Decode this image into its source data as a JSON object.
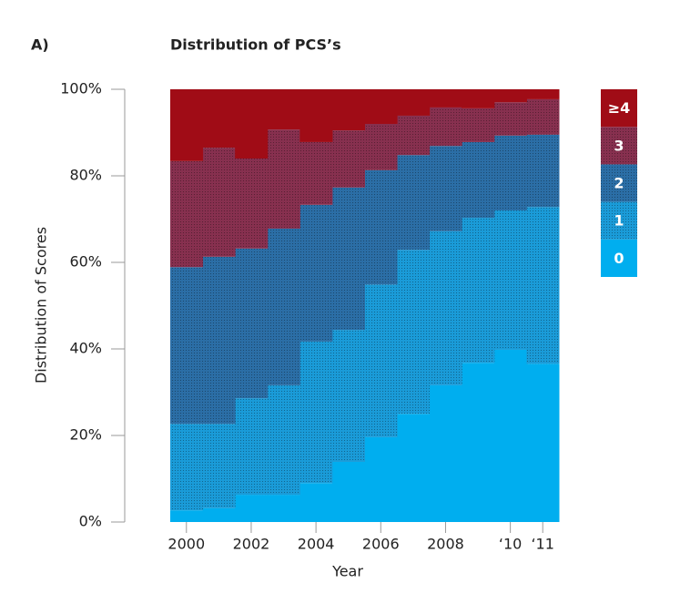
{
  "chart_data": {
    "type": "stacked-step-area",
    "panel_label": "A)",
    "title": "Distribution of PCS’s",
    "x_label": "Year",
    "y_label": "Distribution of Scores",
    "x": [
      2000,
      2001,
      2002,
      2003,
      2004,
      2005,
      2006,
      2007,
      2008,
      2009,
      2010,
      2011
    ],
    "xlim": [
      1999.5,
      2011.5
    ],
    "xticks": [
      2000,
      2002,
      2004,
      2006,
      2008,
      {
        "value": 2010,
        "label": "‘10"
      },
      {
        "value": 2011,
        "label": "‘11"
      }
    ],
    "ylim": [
      0,
      100
    ],
    "yticks": [
      {
        "value": 0,
        "label": "0%"
      },
      {
        "value": 20,
        "label": "20%"
      },
      {
        "value": 40,
        "label": "40%"
      },
      {
        "value": 60,
        "label": "60%"
      },
      {
        "value": 80,
        "label": "80%"
      },
      {
        "value": 100,
        "label": "100%"
      }
    ],
    "series": [
      {
        "name": "0",
        "color": "#00aeef",
        "values": [
          2.7,
          3.2,
          6.3,
          6.3,
          9,
          13.9,
          19.6,
          25,
          31.6,
          36.8,
          39.8,
          36.6
        ]
      },
      {
        "name": "1",
        "color": "#1a9bd8",
        "values": [
          20,
          19.5,
          22.3,
          25.3,
          32.7,
          30.5,
          35.3,
          37.9,
          35.6,
          33.5,
          32.2,
          36.2
        ]
      },
      {
        "name": "2",
        "color": "#2b6ea6",
        "values": [
          36.2,
          38.6,
          34.6,
          36.2,
          31.6,
          32.9,
          26.4,
          21.9,
          19.7,
          17.5,
          17.3,
          16.7
        ]
      },
      {
        "name": "3",
        "color": "#87304f",
        "values": [
          24.5,
          25.2,
          20.8,
          22.9,
          14.5,
          13.2,
          10.7,
          9.1,
          8.9,
          7.8,
          7.7,
          8.2
        ]
      },
      {
        "name": "≥4",
        "color": "#a00c16",
        "values": [
          16.6,
          13.5,
          16,
          9.3,
          12.2,
          9.5,
          8,
          6.1,
          4.2,
          4.4,
          3,
          2.3
        ]
      }
    ]
  }
}
